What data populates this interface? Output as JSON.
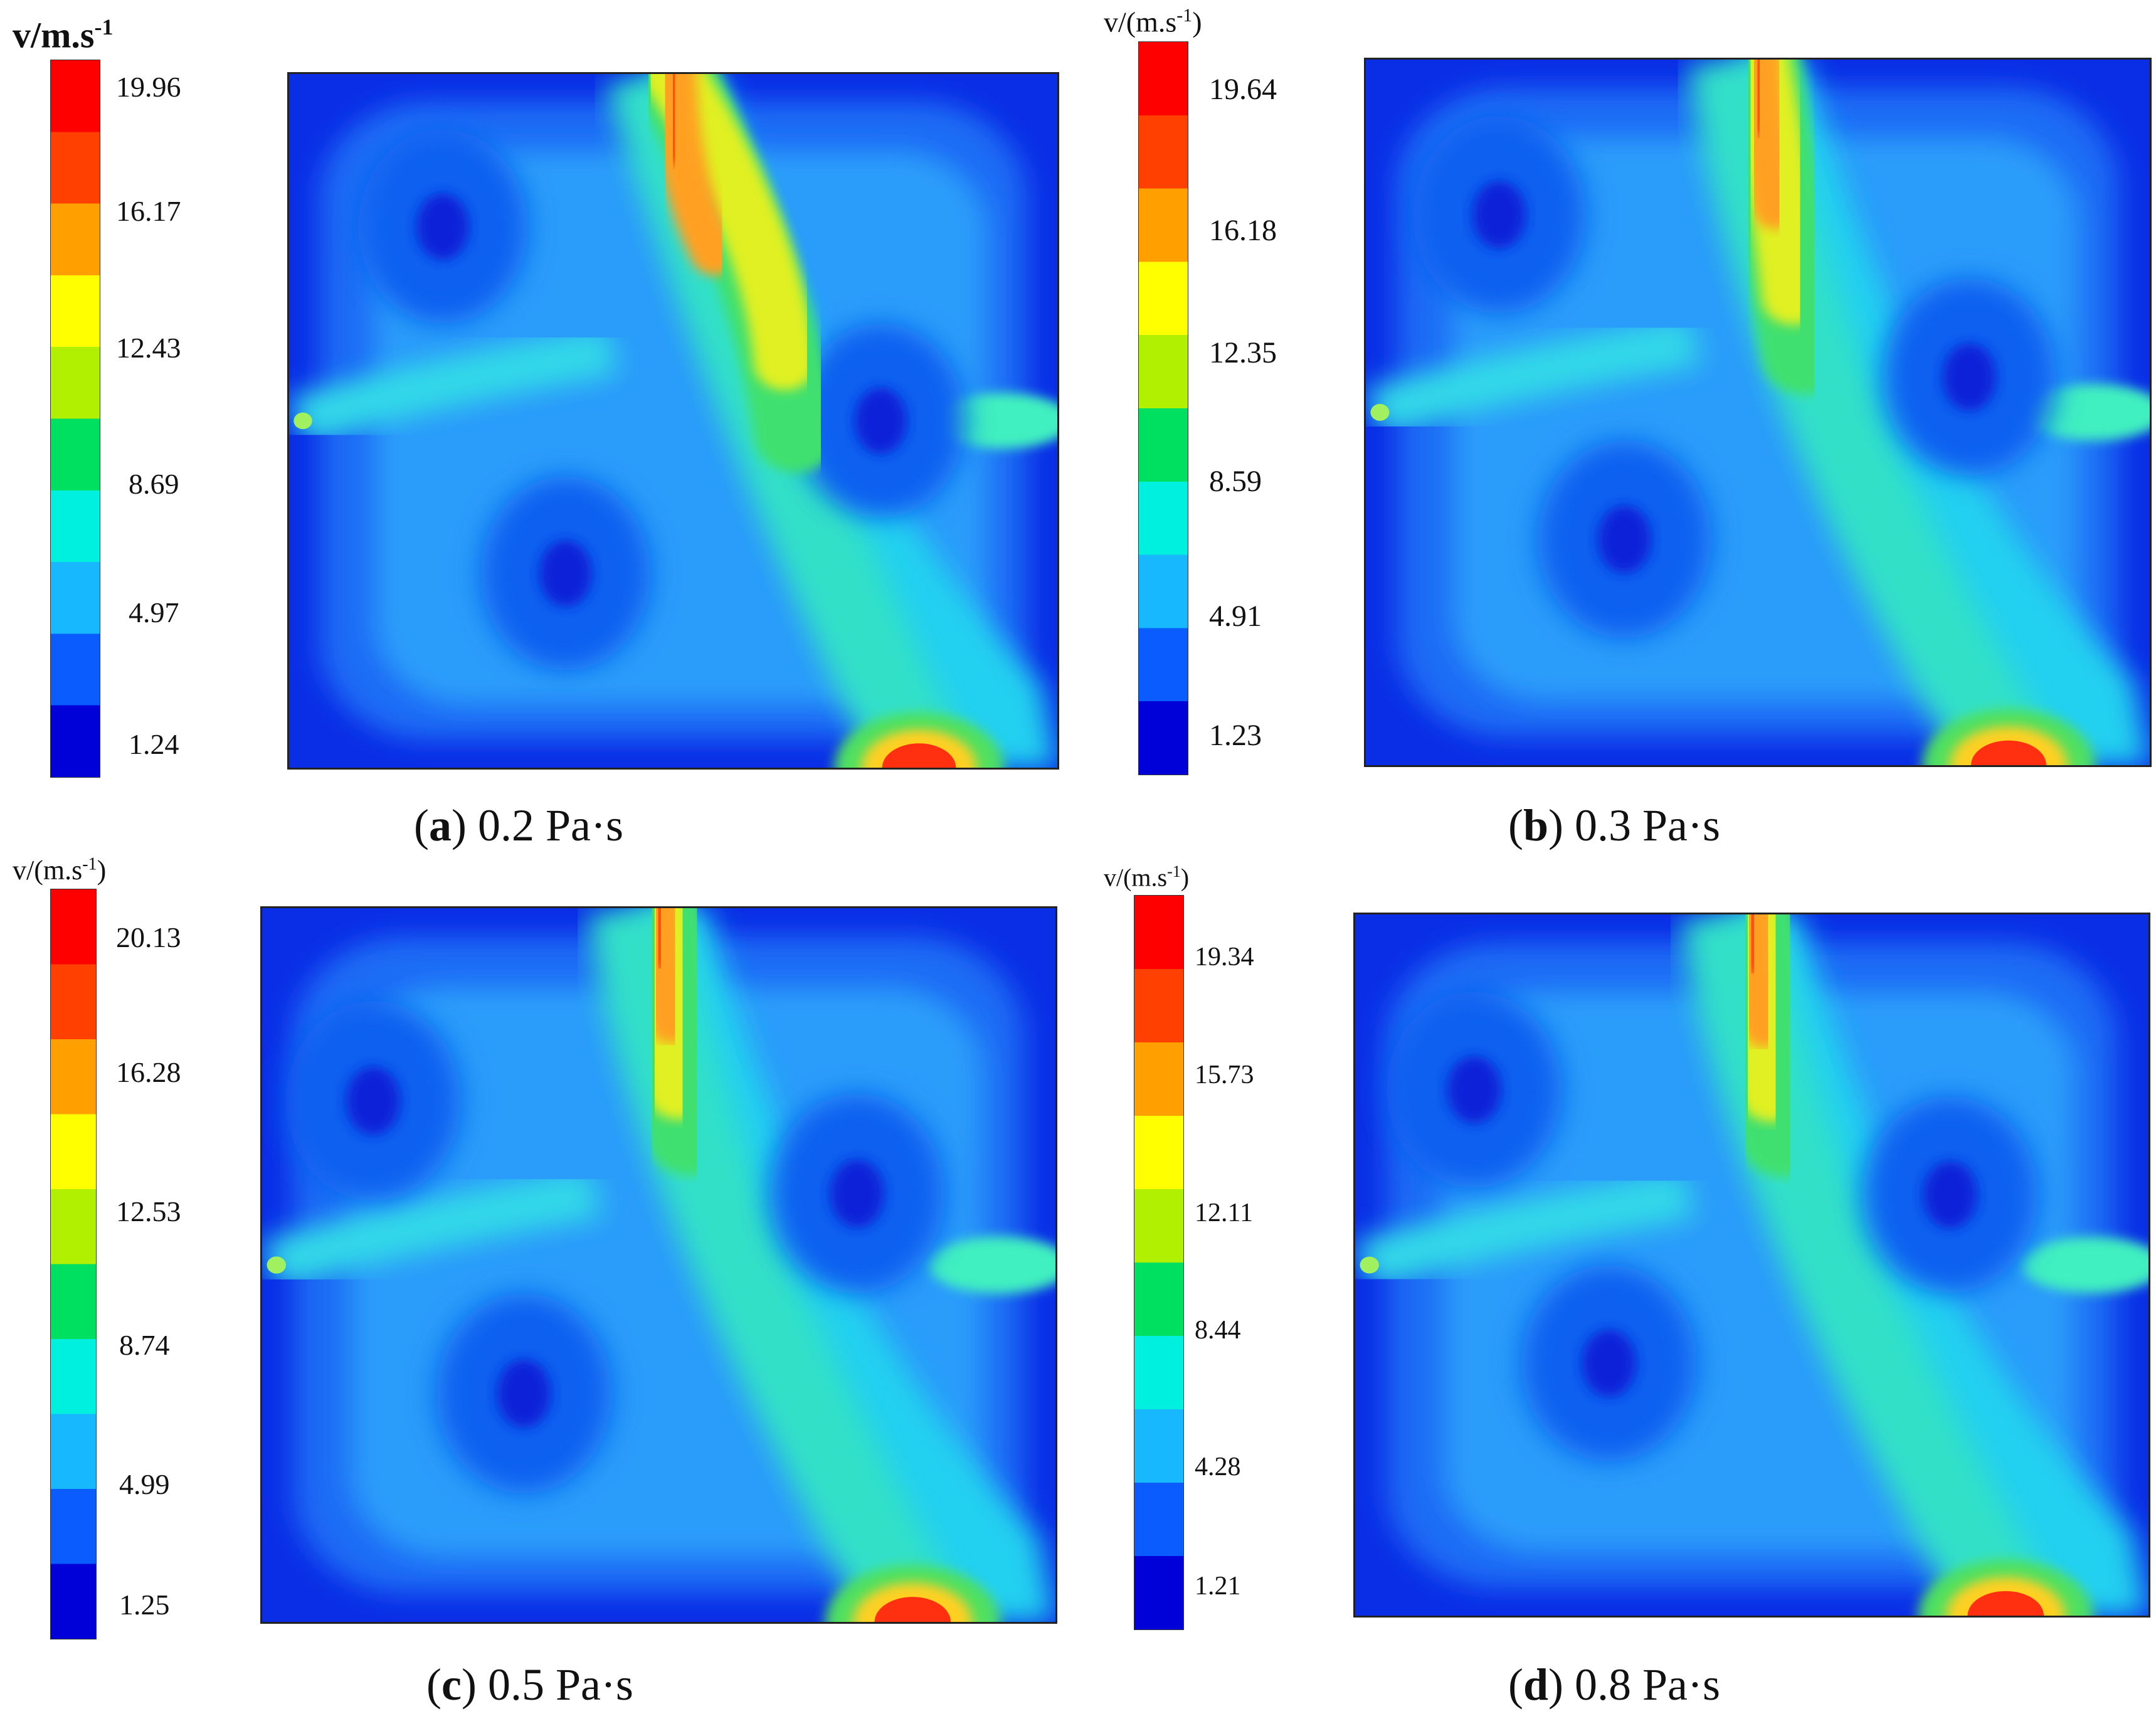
{
  "panels": [
    {
      "unit_label": "v/m.s",
      "unit_exp": "-1",
      "unit_bold": true,
      "ticks": [
        "19.96",
        "16.17",
        "12.43",
        "8.69",
        "4.97",
        "1.24"
      ],
      "caption_letter": "a",
      "caption_value": "0.2 Pa·s"
    },
    {
      "unit_label": "v/(m.s",
      "unit_exp": "-1",
      "unit_close": ")",
      "unit_bold": false,
      "ticks": [
        "19.64",
        "16.18",
        "12.35",
        "8.59",
        "4.91",
        "1.23"
      ],
      "caption_letter": "b",
      "caption_value": "0.3 Pa·s"
    },
    {
      "unit_label": "v/(m.s",
      "unit_exp": "-1",
      "unit_close": ")",
      "unit_bold": false,
      "ticks": [
        "20.13",
        "16.28",
        "12.53",
        "8.74",
        "4.99",
        "1.25"
      ],
      "caption_letter": "c",
      "caption_value": "0.5 Pa·s"
    },
    {
      "unit_label": "v/(m.s",
      "unit_exp": "-1",
      "unit_close": ")",
      "unit_bold": false,
      "ticks": [
        "19.34",
        "15.73",
        "12.11",
        "8.44",
        "4.28",
        "1.21"
      ],
      "caption_letter": "d",
      "caption_value": "0.8 Pa·s"
    }
  ],
  "chart_data": [
    {
      "type": "heatmap",
      "title": "",
      "colorbar_label": "v/m.s-1",
      "colorbar_ticks": [
        19.96,
        16.17,
        12.43,
        8.69,
        4.97,
        1.24
      ],
      "caption": "(a) 0.2 Pa·s",
      "colormap": [
        "#0000d8",
        "#0a5cff",
        "#18b8ff",
        "#00f0e0",
        "#00e060",
        "#b0f000",
        "#ffff00",
        "#ffa000",
        "#ff4000",
        "#ff0000"
      ]
    },
    {
      "type": "heatmap",
      "title": "",
      "colorbar_label": "v/(m.s-1)",
      "colorbar_ticks": [
        19.64,
        16.18,
        12.35,
        8.59,
        4.91,
        1.23
      ],
      "caption": "(b) 0.3 Pa·s",
      "colormap": [
        "#0000d8",
        "#0a5cff",
        "#18b8ff",
        "#00f0e0",
        "#00e060",
        "#b0f000",
        "#ffff00",
        "#ffa000",
        "#ff4000",
        "#ff0000"
      ]
    },
    {
      "type": "heatmap",
      "title": "",
      "colorbar_label": "v/(m.s-1)",
      "colorbar_ticks": [
        20.13,
        16.28,
        12.53,
        8.74,
        4.99,
        1.25
      ],
      "caption": "(c) 0.5 Pa·s",
      "colormap": [
        "#0000d8",
        "#0a5cff",
        "#18b8ff",
        "#00f0e0",
        "#00e060",
        "#b0f000",
        "#ffff00",
        "#ffa000",
        "#ff4000",
        "#ff0000"
      ]
    },
    {
      "type": "heatmap",
      "title": "",
      "colorbar_label": "v/(m.s-1)",
      "colorbar_ticks": [
        19.34,
        15.73,
        12.11,
        8.44,
        4.28,
        1.21
      ],
      "caption": "(d) 0.8 Pa·s",
      "colormap": [
        "#0000d8",
        "#0a5cff",
        "#18b8ff",
        "#00f0e0",
        "#00e060",
        "#b0f000",
        "#ffff00",
        "#ffa000",
        "#ff4000",
        "#ff0000"
      ]
    }
  ]
}
